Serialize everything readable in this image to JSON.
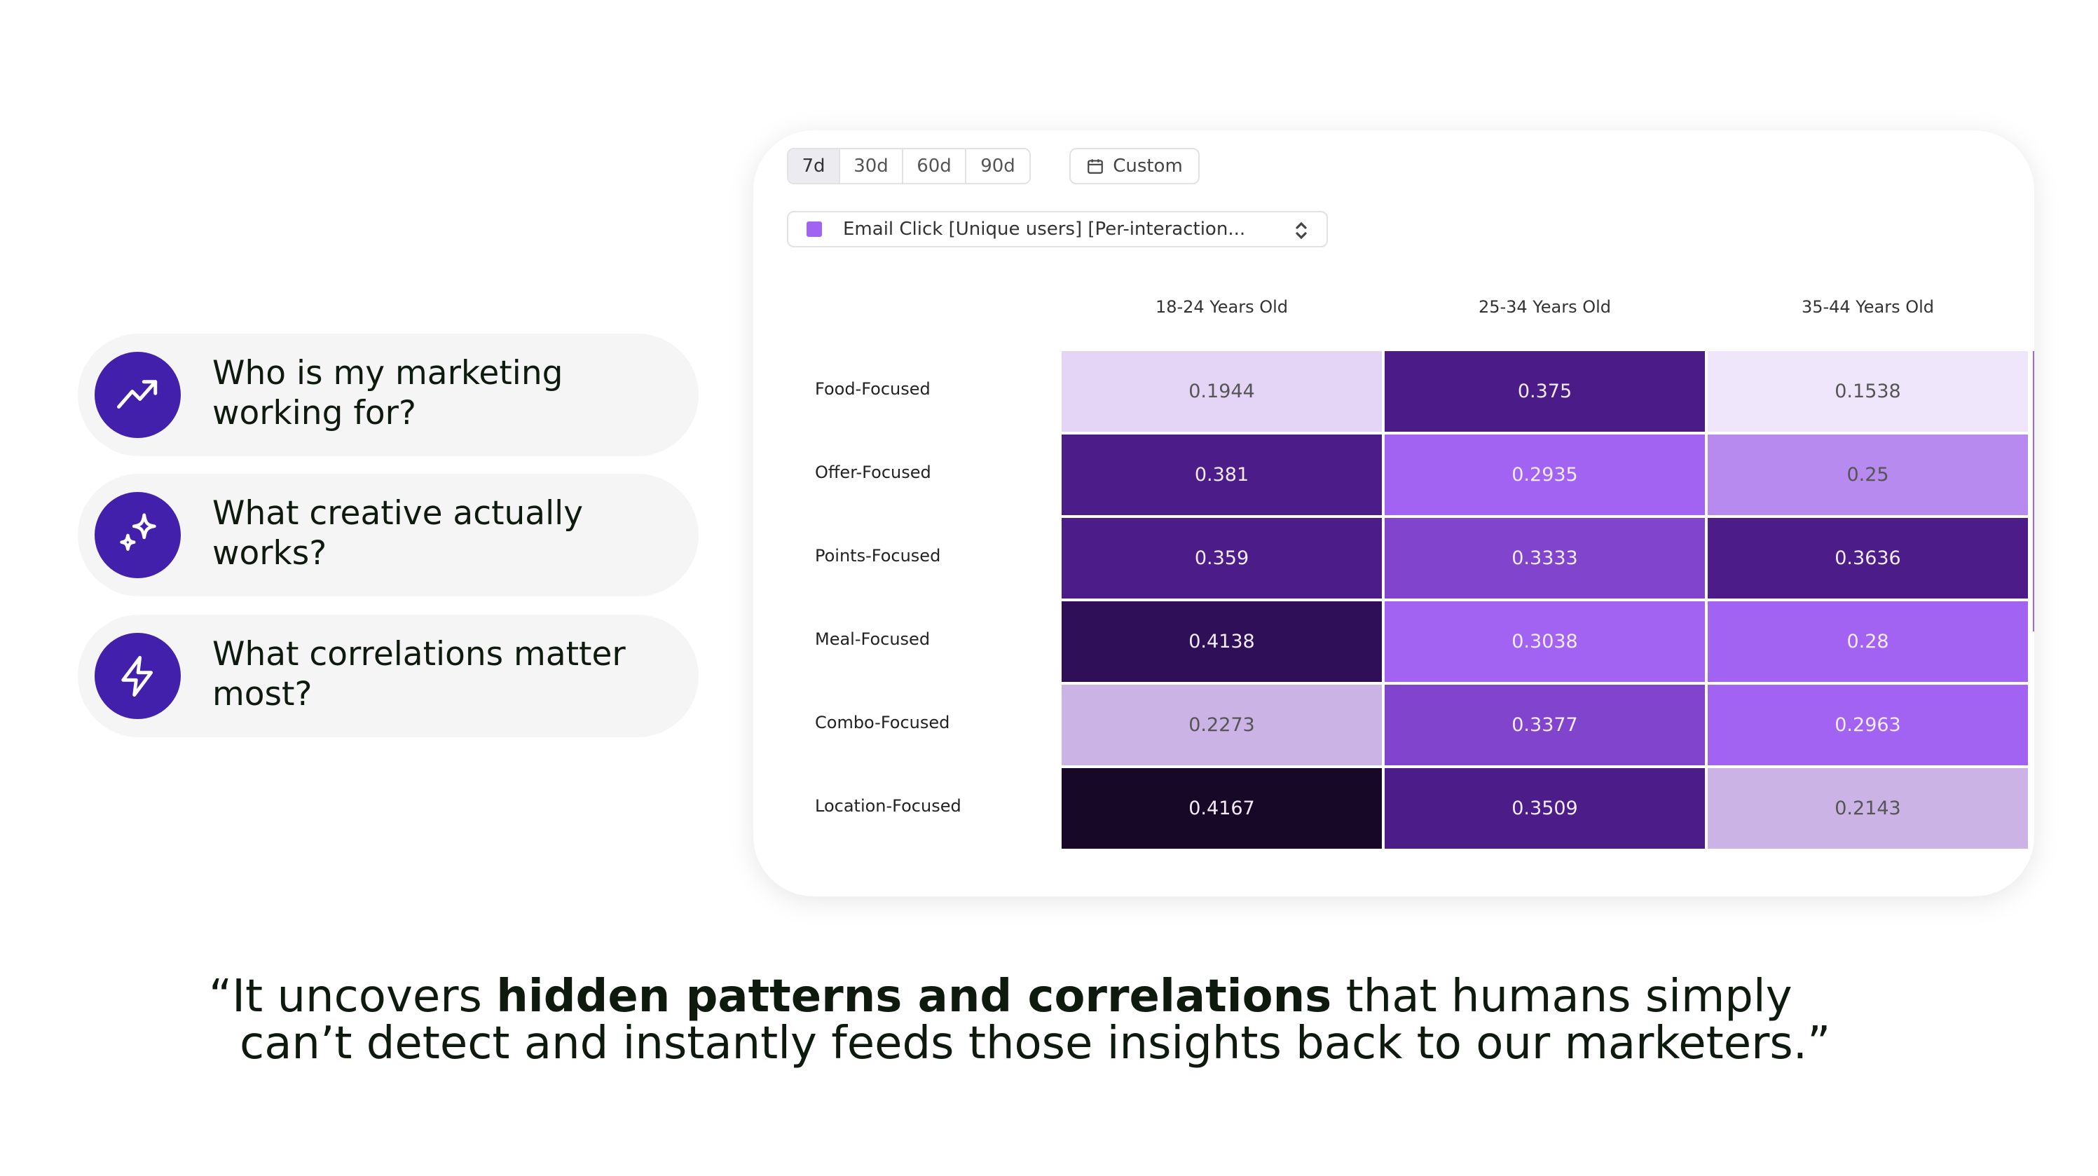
{
  "questions": [
    {
      "icon": "trending-up-icon",
      "text": "Who is my marketing working for?"
    },
    {
      "icon": "sparkles-icon",
      "text": "What creative actually works?"
    },
    {
      "icon": "lightning-icon",
      "text": "What correlations matter most?"
    }
  ],
  "panel": {
    "ranges": [
      "7d",
      "30d",
      "60d",
      "90d"
    ],
    "active_range": "7d",
    "custom_label": "Custom",
    "metric_select": "Email Click [Unique users] [Per-interaction...",
    "metric_color": "#a063f2"
  },
  "chart_data": {
    "type": "heatmap",
    "columns": [
      "18-24 Years Old",
      "25-34 Years Old",
      "35-44 Years Old"
    ],
    "rows": [
      "Food-Focused",
      "Offer-Focused",
      "Points-Focused",
      "Meal-Focused",
      "Combo-Focused",
      "Location-Focused"
    ],
    "values": [
      [
        "0.1944",
        "0.375",
        "0.1538"
      ],
      [
        "0.381",
        "0.2935",
        "0.25"
      ],
      [
        "0.359",
        "0.3333",
        "0.3636"
      ],
      [
        "0.4138",
        "0.3038",
        "0.28"
      ],
      [
        "0.2273",
        "0.3377",
        "0.2963"
      ],
      [
        "0.4167",
        "0.3509",
        "0.2143"
      ]
    ],
    "colors": [
      [
        "#e4d4f5",
        "#4b1c87",
        "#f0e6fb"
      ],
      [
        "#4c1c88",
        "#a263f2",
        "#b78af0"
      ],
      [
        "#4c1c88",
        "#8045cc",
        "#4c1c88"
      ],
      [
        "#2f0f57",
        "#a263f2",
        "#a263f2"
      ],
      [
        "#ccb3e6",
        "#8045cc",
        "#a263f2"
      ],
      [
        "#170828",
        "#4c1c88",
        "#ccb3e6"
      ]
    ]
  },
  "quote": {
    "open": "“It uncovers ",
    "bold": "hidden patterns and correlations",
    "rest1": " that humans simply",
    "line2": "can’t detect and instantly feeds those insights back to our marketers.”"
  },
  "accent": "#4320ab"
}
